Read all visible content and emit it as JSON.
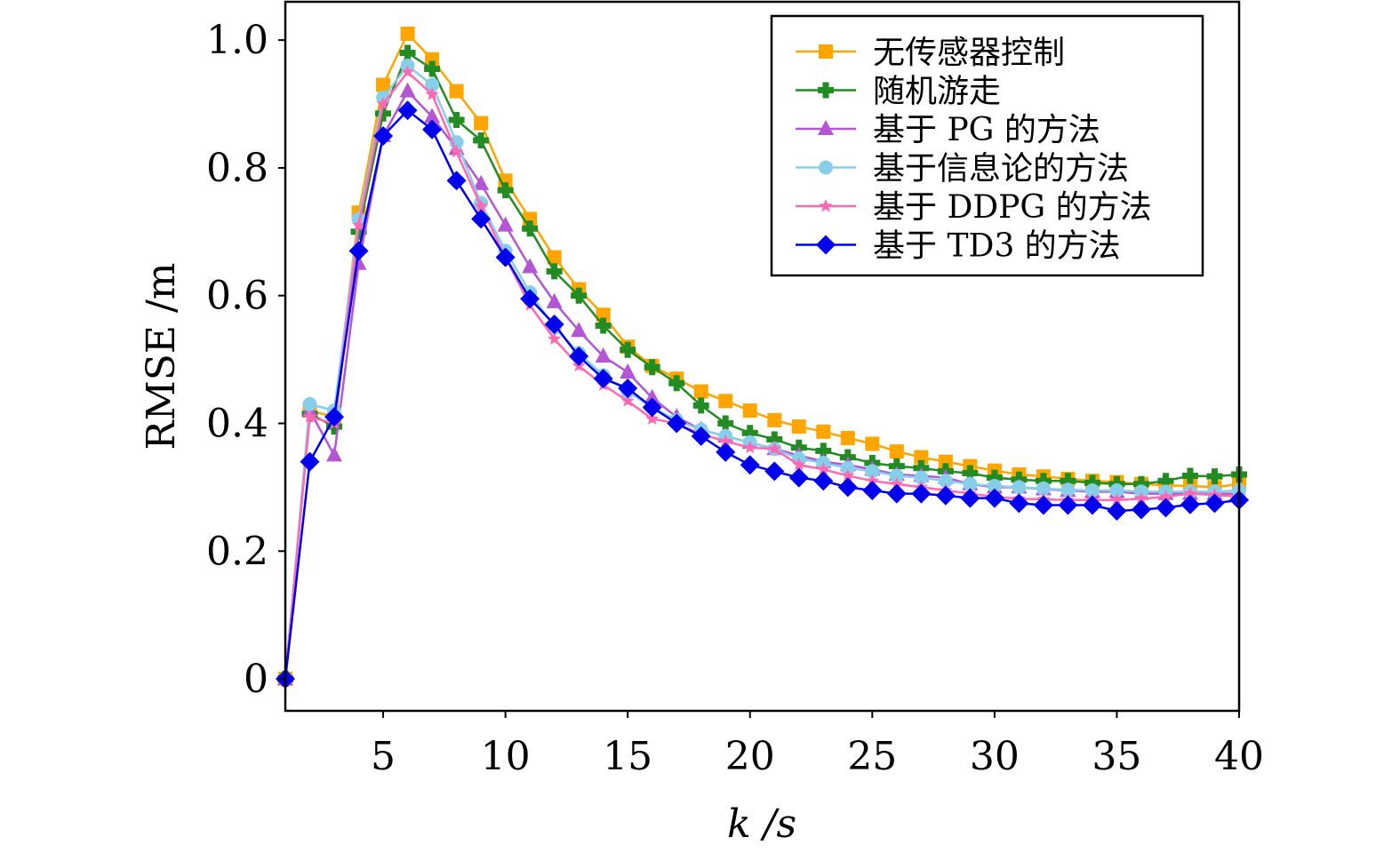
{
  "chart_data": {
    "type": "line",
    "xlabel": "k /s",
    "ylabel": "RMSE /m",
    "xlim": [
      1,
      40
    ],
    "ylim": [
      -0.05,
      1.06
    ],
    "xticks": [
      5,
      10,
      15,
      20,
      25,
      30,
      35,
      40
    ],
    "yticks": [
      0,
      0.2,
      0.4,
      0.6,
      0.8,
      1.0
    ],
    "ytick_labels": [
      "0",
      "0.2",
      "0.4",
      "0.6",
      "0.8",
      "1.0"
    ],
    "legend_position": "top-right",
    "grid": false,
    "x": [
      1,
      2,
      3,
      4,
      5,
      6,
      7,
      8,
      9,
      10,
      11,
      12,
      13,
      14,
      15,
      16,
      17,
      18,
      19,
      20,
      21,
      22,
      23,
      24,
      25,
      26,
      27,
      28,
      29,
      30,
      31,
      32,
      33,
      34,
      35,
      36,
      37,
      38,
      39,
      40
    ],
    "series": [
      {
        "name": "无传感器控制",
        "color": "#FFA500",
        "marker": "square",
        "values": [
          0,
          0.42,
          0.41,
          0.73,
          0.93,
          1.01,
          0.97,
          0.92,
          0.87,
          0.78,
          0.72,
          0.66,
          0.61,
          0.57,
          0.52,
          0.49,
          0.47,
          0.45,
          0.435,
          0.42,
          0.405,
          0.395,
          0.387,
          0.377,
          0.368,
          0.356,
          0.347,
          0.34,
          0.333,
          0.326,
          0.32,
          0.317,
          0.313,
          0.31,
          0.308,
          0.305,
          0.303,
          0.302,
          0.3,
          0.305
        ]
      },
      {
        "name": "随机游走",
        "color": "#228B22",
        "marker": "plus",
        "values": [
          0,
          0.415,
          0.395,
          0.7,
          0.885,
          0.98,
          0.955,
          0.875,
          0.843,
          0.765,
          0.705,
          0.638,
          0.6,
          0.553,
          0.515,
          0.488,
          0.463,
          0.428,
          0.4,
          0.385,
          0.375,
          0.362,
          0.357,
          0.347,
          0.338,
          0.333,
          0.33,
          0.325,
          0.322,
          0.315,
          0.312,
          0.31,
          0.31,
          0.307,
          0.305,
          0.305,
          0.31,
          0.318,
          0.317,
          0.32
        ]
      },
      {
        "name": "基于 PG 的方法",
        "color": "#B455D3",
        "marker": "triangle",
        "values": [
          0,
          0.42,
          0.35,
          0.65,
          0.85,
          0.92,
          0.88,
          0.83,
          0.775,
          0.71,
          0.645,
          0.59,
          0.545,
          0.505,
          0.48,
          0.44,
          0.41,
          0.39,
          0.38,
          0.37,
          0.36,
          0.35,
          0.34,
          0.335,
          0.328,
          0.32,
          0.318,
          0.315,
          0.305,
          0.3,
          0.3,
          0.297,
          0.295,
          0.293,
          0.293,
          0.29,
          0.29,
          0.29,
          0.29,
          0.29
        ]
      },
      {
        "name": "基于信息论的方法",
        "color": "#87CEEB",
        "marker": "circle",
        "values": [
          0,
          0.43,
          0.42,
          0.72,
          0.91,
          0.96,
          0.93,
          0.84,
          0.745,
          0.67,
          0.605,
          0.55,
          0.51,
          0.475,
          0.45,
          0.425,
          0.405,
          0.39,
          0.38,
          0.37,
          0.36,
          0.345,
          0.338,
          0.33,
          0.325,
          0.318,
          0.315,
          0.31,
          0.305,
          0.302,
          0.3,
          0.298,
          0.296,
          0.295,
          0.295,
          0.293,
          0.293,
          0.293,
          0.293,
          0.295
        ]
      },
      {
        "name": "基于 DDPG 的方法",
        "color": "#FF69B4",
        "marker": "star",
        "values": [
          0,
          0.41,
          0.4,
          0.71,
          0.9,
          0.95,
          0.915,
          0.825,
          0.74,
          0.66,
          0.585,
          0.532,
          0.49,
          0.46,
          0.435,
          0.407,
          0.4,
          0.383,
          0.372,
          0.362,
          0.36,
          0.335,
          0.328,
          0.318,
          0.31,
          0.305,
          0.3,
          0.295,
          0.29,
          0.285,
          0.282,
          0.281,
          0.28,
          0.28,
          0.28,
          0.282,
          0.285,
          0.29,
          0.288,
          0.285
        ]
      },
      {
        "name": "基于 TD3 的方法",
        "color": "#0000EE",
        "marker": "diamond",
        "values": [
          0,
          0.34,
          0.41,
          0.67,
          0.85,
          0.89,
          0.86,
          0.78,
          0.72,
          0.66,
          0.595,
          0.555,
          0.505,
          0.47,
          0.455,
          0.425,
          0.4,
          0.38,
          0.355,
          0.335,
          0.325,
          0.315,
          0.31,
          0.3,
          0.295,
          0.29,
          0.29,
          0.287,
          0.283,
          0.283,
          0.275,
          0.272,
          0.272,
          0.272,
          0.263,
          0.265,
          0.268,
          0.273,
          0.275,
          0.28
        ]
      }
    ]
  }
}
